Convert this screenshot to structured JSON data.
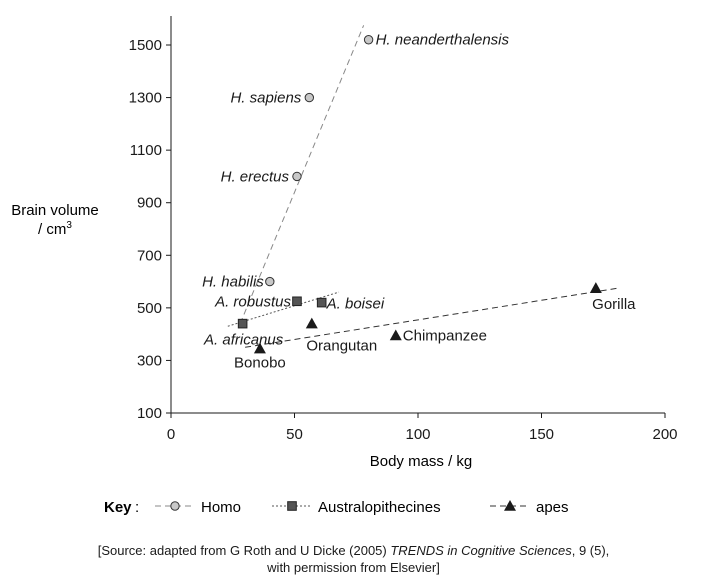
{
  "chart_data": {
    "type": "scatter",
    "xlabel": "Body mass / kg",
    "ylabel_line1": "Brain volume",
    "ylabel_line2": "/ cm",
    "ylabel_sup": "3",
    "xlim": [
      0,
      200
    ],
    "ylim": [
      100,
      1600
    ],
    "x_ticks": [
      0,
      50,
      100,
      150,
      200
    ],
    "y_ticks": [
      100,
      300,
      500,
      700,
      900,
      1100,
      1300,
      1500
    ],
    "grid": false,
    "legend_title": "Key",
    "legend_colon": ":",
    "series": [
      {
        "name": "Homo",
        "marker": "circle",
        "line_style": "dashed",
        "color": "#c8c8c8",
        "trend": [
          [
            28,
            440
          ],
          [
            78,
            1575
          ]
        ],
        "points": [
          {
            "label": "H. neanderthalensis",
            "x": 80,
            "y": 1520
          },
          {
            "label": "H. sapiens",
            "x": 56,
            "y": 1300
          },
          {
            "label": "H. erectus",
            "x": 51,
            "y": 1000
          },
          {
            "label": "H. habilis",
            "x": 40,
            "y": 600
          }
        ]
      },
      {
        "name": "Australopithecines",
        "marker": "square",
        "line_style": "dotted",
        "color": "#555555",
        "trend": [
          [
            23,
            430
          ],
          [
            68,
            560
          ]
        ],
        "points": [
          {
            "label": "A. robustus",
            "x": 51,
            "y": 525
          },
          {
            "label": "A. boisei",
            "x": 61,
            "y": 520
          },
          {
            "label": "A. africanus",
            "x": 29,
            "y": 440
          }
        ]
      },
      {
        "name": "apes",
        "marker": "triangle",
        "line_style": "dashed",
        "color": "#1a1a1a",
        "trend": [
          [
            30,
            350
          ],
          [
            181,
            575
          ]
        ],
        "points": [
          {
            "label": "Gorilla",
            "x": 172,
            "y": 575
          },
          {
            "label": "Orangutan",
            "x": 57,
            "y": 440
          },
          {
            "label": "Chimpanzee",
            "x": 91,
            "y": 395
          },
          {
            "label": "Bonobo",
            "x": 36,
            "y": 345
          }
        ]
      }
    ]
  },
  "source": {
    "prefix": "[Source: adapted from G Roth and U Dicke (2005) ",
    "journal": "TRENDS in Cognitive Sciences",
    "suffix": ", 9 (5),",
    "line2": "with permission from Elsevier]"
  }
}
